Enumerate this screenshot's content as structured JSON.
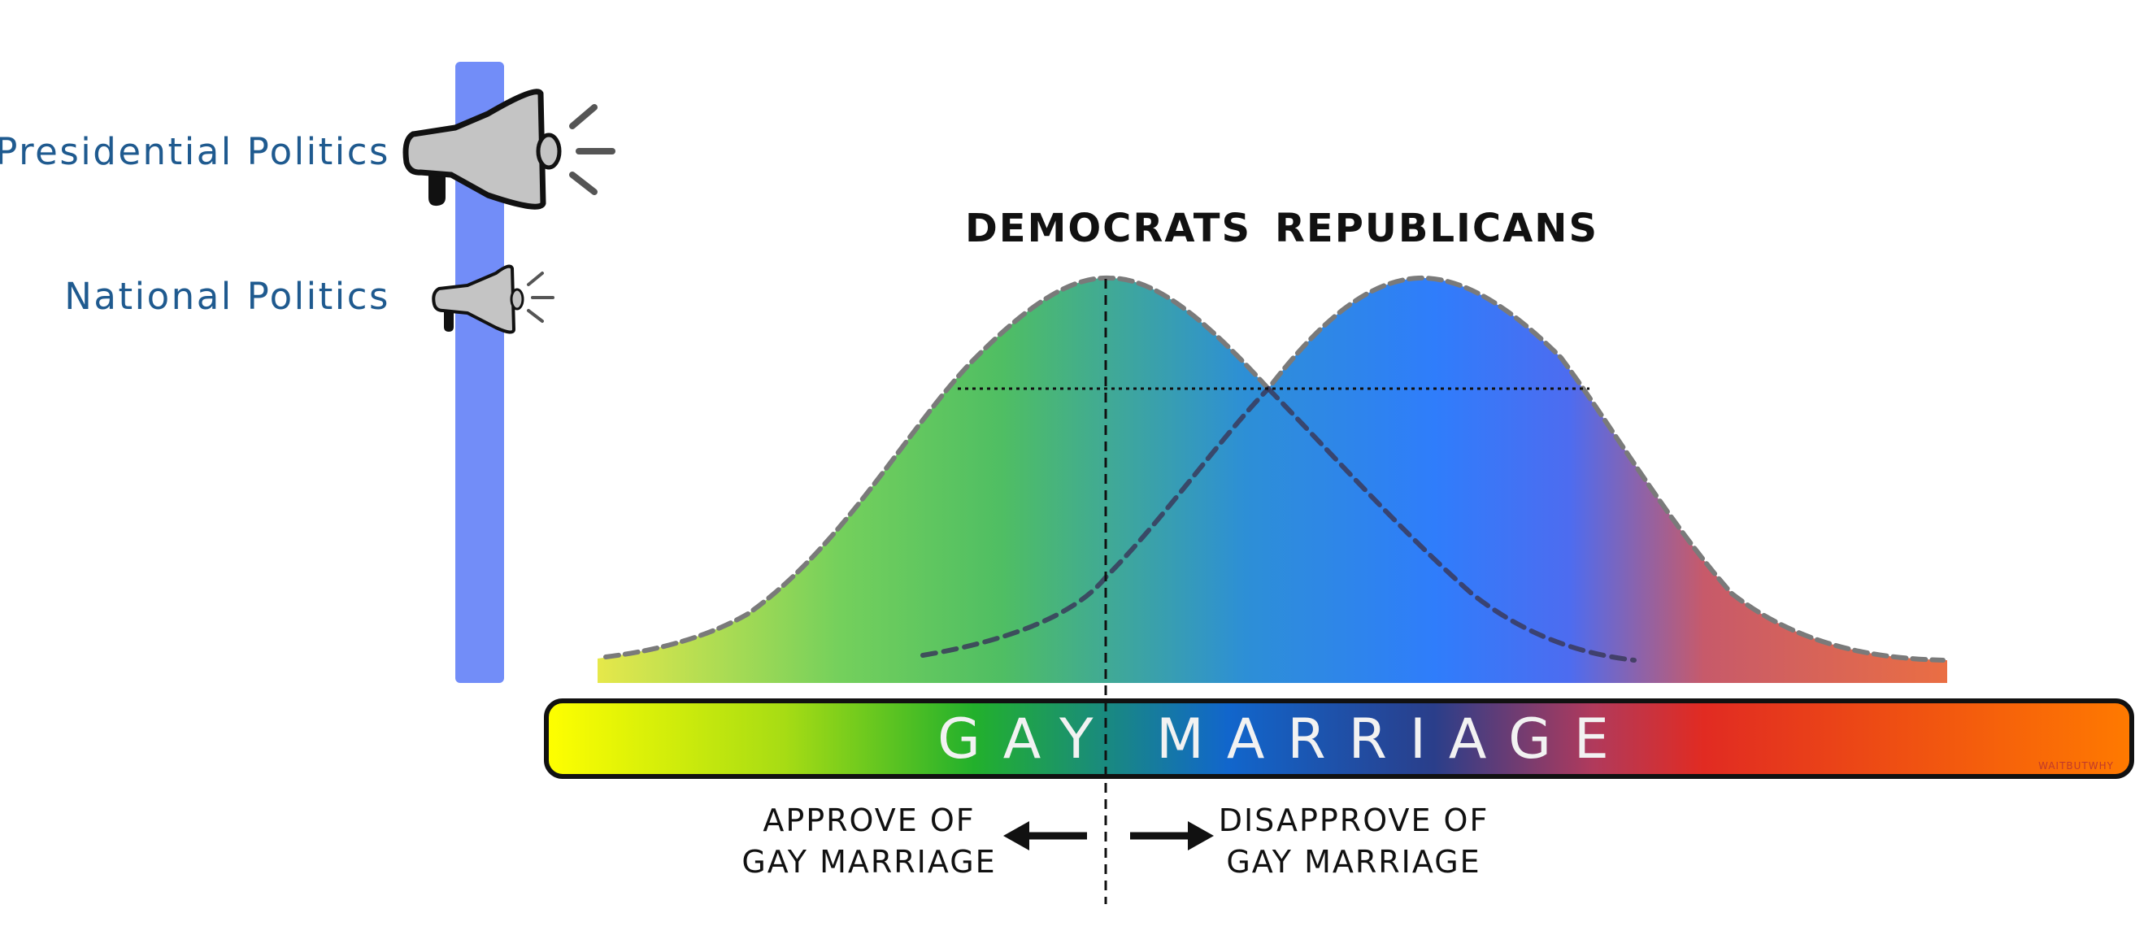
{
  "left_labels": {
    "presidential": "Presidential Politics",
    "national": "National Politics"
  },
  "parties": {
    "democrats": "DEMOCRATS",
    "republicans": "REPUBLICANS"
  },
  "axis": {
    "title": "GAY MARRIAGE",
    "left_line1": "APPROVE OF",
    "left_line2": "GAY MARRIAGE",
    "right_line1": "DISAPPROVE OF",
    "right_line2": "GAY MARRIAGE"
  },
  "watermark": "WAITBUTWHY",
  "colors": {
    "volume_bar": "#728df8",
    "left_label": "#1f5a8f",
    "gradient_stops": [
      "#ffff00",
      "#a7dc14",
      "#22b02c",
      "#1166cc",
      "#b03a5c",
      "#e12b22",
      "#ff7a00"
    ]
  }
}
